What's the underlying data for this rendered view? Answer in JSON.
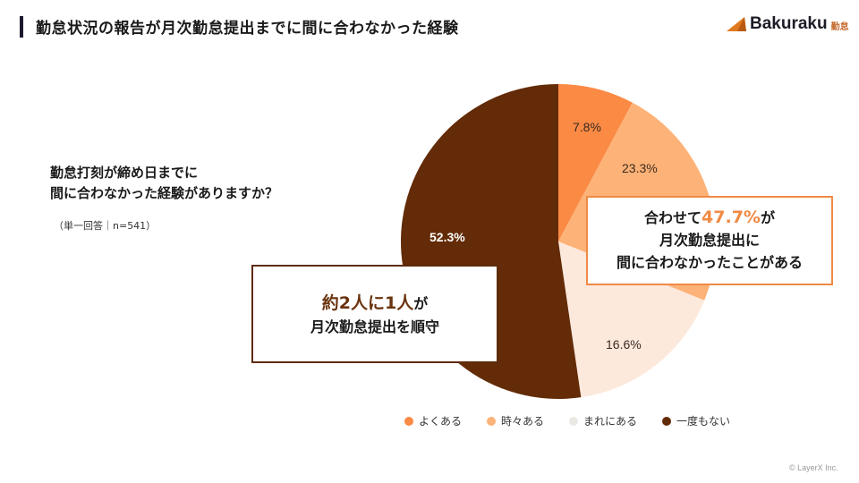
{
  "header": {
    "title": "勤怠状況の報告が月次勤怠提出までに間に合わなかった経験",
    "logo_brand": "Bakuraku",
    "logo_sub": "勤怠"
  },
  "question": {
    "line1": "勤怠打刻が締め日までに",
    "line2": "間に合わなかった経験がありますか？",
    "note": "（単一回答｜n=541）"
  },
  "callouts": {
    "right": {
      "prefix": "合わせて",
      "highlight": "47.7%",
      "suffix": "が",
      "line2": "月次勤怠提出に",
      "line3": "間に合わなかったことがある",
      "border_color": "#f08a45"
    },
    "left": {
      "highlight1": "約2人",
      "middle": "に",
      "highlight2": "1人",
      "suffix": "が",
      "line2": "月次勤怠提出を順守",
      "border_color": "#5e2c0c"
    }
  },
  "chart_data": {
    "type": "pie",
    "title": "勤怠状況の報告が月次勤怠提出までに間に合わなかった経験",
    "subtitle": "勤怠打刻が締め日までに間に合わなかった経験がありますか？（単一回答｜n=541）",
    "categories": [
      "よくある",
      "時々ある",
      "まれにある",
      "一度もない"
    ],
    "values": [
      7.8,
      23.3,
      16.6,
      52.3
    ],
    "labels": [
      "7.8%",
      "23.3%",
      "16.6%",
      "52.3%"
    ],
    "colors": [
      "#fb8a45",
      "#fdb277",
      "#fde8dc",
      "#632b07"
    ],
    "start_angle": "12 o'clock, clockwise",
    "legend_position": "bottom",
    "annotations": [
      "合わせて47.7%が月次勤怠提出に間に合わなかったことがある",
      "約2人に1人が月次勤怠提出を順守"
    ]
  },
  "legend": [
    {
      "label": "よくある",
      "color": "#fb8a45"
    },
    {
      "label": "時々ある",
      "color": "#fdb277"
    },
    {
      "label": "まれにある",
      "color": "#ece8e4"
    },
    {
      "label": "一度もない",
      "color": "#632b07"
    }
  ],
  "footer": {
    "copyright": "© LayerX Inc."
  }
}
